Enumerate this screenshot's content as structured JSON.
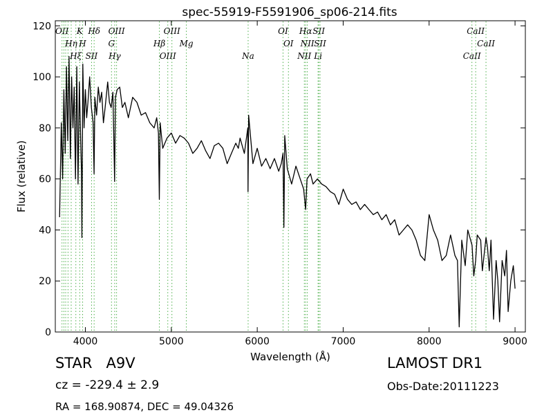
{
  "chart_data": {
    "type": "line",
    "title": "spec-55919-F5591906_sp06-214.fits",
    "xlabel": "Wavelength (Å)",
    "ylabel": "Flux (relative)",
    "xlim": [
      3650,
      9120
    ],
    "ylim": [
      0,
      122
    ],
    "xticks": [
      4000,
      5000,
      6000,
      7000,
      8000,
      9000
    ],
    "yticks": [
      0,
      20,
      40,
      60,
      80,
      100,
      120
    ],
    "grid": false,
    "line_color": "#000000",
    "marker_color": "#4daf4a",
    "series": [
      {
        "x": [
          3700,
          3720,
          3735,
          3750,
          3765,
          3780,
          3795,
          3810,
          3825,
          3840,
          3855,
          3870,
          3885,
          3900,
          3915,
          3930,
          3945,
          3955,
          3960,
          3970,
          3985,
          4000,
          4015,
          4030,
          4050,
          4070,
          4090,
          4101,
          4110,
          4130,
          4150,
          4170,
          4190,
          4210,
          4230,
          4260,
          4280,
          4300,
          4320,
          4330,
          4340,
          4350,
          4370,
          4400,
          4430,
          4460,
          4500,
          4550,
          4600,
          4650,
          4700,
          4750,
          4800,
          4830,
          4850,
          4861,
          4870,
          4900,
          4950,
          5000,
          5050,
          5100,
          5150,
          5200,
          5250,
          5300,
          5350,
          5400,
          5450,
          5500,
          5550,
          5600,
          5650,
          5700,
          5750,
          5780,
          5800,
          5850,
          5890,
          5893,
          5900,
          5950,
          6000,
          6050,
          6100,
          6150,
          6200,
          6250,
          6280,
          6300,
          6310,
          6320,
          6350,
          6400,
          6450,
          6500,
          6540,
          6563,
          6580,
          6620,
          6650,
          6700,
          6750,
          6800,
          6850,
          6900,
          6950,
          7000,
          7050,
          7100,
          7150,
          7200,
          7250,
          7300,
          7350,
          7400,
          7450,
          7500,
          7550,
          7600,
          7650,
          7700,
          7750,
          7800,
          7850,
          7900,
          7950,
          8000,
          8050,
          8100,
          8150,
          8200,
          8250,
          8300,
          8330,
          8350,
          8380,
          8420,
          8450,
          8500,
          8520,
          8542,
          8560,
          8600,
          8620,
          8662,
          8680,
          8700,
          8720,
          8750,
          8780,
          8800,
          8820,
          8850,
          8880,
          8900,
          8920,
          8950,
          8980,
          9000
        ],
        "y": [
          45,
          82,
          60,
          95,
          70,
          104,
          75,
          108,
          68,
          100,
          80,
          96,
          60,
          104,
          58,
          98,
          75,
          63,
          37,
          105,
          80,
          95,
          84,
          90,
          100,
          88,
          82,
          62,
          92,
          85,
          96,
          90,
          94,
          82,
          88,
          98,
          90,
          88,
          94,
          78,
          59,
          92,
          95,
          96,
          88,
          90,
          84,
          92,
          90,
          85,
          86,
          82,
          80,
          84,
          78,
          52,
          82,
          72,
          76,
          78,
          74,
          77,
          76,
          74,
          70,
          72,
          75,
          71,
          68,
          73,
          74,
          72,
          66,
          70,
          74,
          72,
          76,
          70,
          80,
          55,
          85,
          66,
          72,
          65,
          68,
          64,
          68,
          63,
          66,
          70,
          41,
          77,
          64,
          58,
          65,
          60,
          56,
          48,
          60,
          62,
          58,
          60,
          58,
          57,
          55,
          54,
          50,
          56,
          52,
          50,
          51,
          48,
          50,
          48,
          46,
          47,
          44,
          46,
          42,
          44,
          38,
          40,
          42,
          40,
          36,
          30,
          28,
          46,
          40,
          36,
          28,
          30,
          38,
          30,
          28,
          2,
          36,
          26,
          40,
          34,
          22,
          28,
          38,
          36,
          24,
          37,
          33,
          24,
          36,
          5,
          28,
          20,
          4,
          28,
          22,
          32,
          8,
          20,
          26,
          17
        ]
      }
    ],
    "lines": [
      {
        "lambda": 3728,
        "label": "OII"
      },
      {
        "lambda": 3750,
        "label": ""
      },
      {
        "lambda": 3771,
        "label": ""
      },
      {
        "lambda": 3798,
        "label": ""
      },
      {
        "lambda": 3835,
        "label": "Hη"
      },
      {
        "lambda": 3889,
        "label": "Hξ"
      },
      {
        "lambda": 3934,
        "label": "K"
      },
      {
        "lambda": 3968,
        "label": "H"
      },
      {
        "lambda": 4072,
        "label": "SII"
      },
      {
        "lambda": 4102,
        "label": "Hδ"
      },
      {
        "lambda": 4304,
        "label": "G"
      },
      {
        "lambda": 4341,
        "label": "Hγ"
      },
      {
        "lambda": 4363,
        "label": "OIII"
      },
      {
        "lambda": 4861,
        "label": "Hβ"
      },
      {
        "lambda": 4959,
        "label": "OIII"
      },
      {
        "lambda": 5007,
        "label": "OIII"
      },
      {
        "lambda": 5175,
        "label": "Mg"
      },
      {
        "lambda": 5894,
        "label": "Na"
      },
      {
        "lambda": 6300,
        "label": "OI"
      },
      {
        "lambda": 6363,
        "label": "OI"
      },
      {
        "lambda": 6548,
        "label": "NII"
      },
      {
        "lambda": 6563,
        "label": "Hα"
      },
      {
        "lambda": 6583,
        "label": "NII"
      },
      {
        "lambda": 6708,
        "label": "Li"
      },
      {
        "lambda": 6716,
        "label": "SII"
      },
      {
        "lambda": 6731,
        "label": "SII"
      },
      {
        "lambda": 8498,
        "label": "CaII"
      },
      {
        "lambda": 8542,
        "label": "CaII"
      },
      {
        "lambda": 8662,
        "label": "CaII"
      }
    ]
  },
  "info": {
    "class_line": "STAR   A9V",
    "survey": "LAMOST DR1",
    "cz": "cz = -229.4 ± 2.9",
    "obs_date": "Obs-Date:20111223",
    "coords": "RA = 168.90874, DEC = 49.04326"
  }
}
